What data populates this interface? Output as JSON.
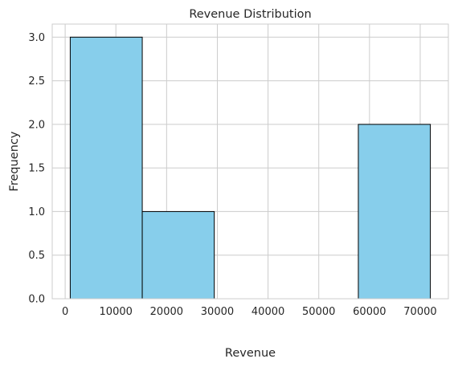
{
  "chart_data": {
    "type": "bar",
    "title": "Revenue Distribution",
    "xlabel": "Revenue",
    "ylabel": "Frequency",
    "bins": [
      {
        "start": 1000,
        "end": 15200,
        "count": 3
      },
      {
        "start": 15200,
        "end": 29400,
        "count": 1
      },
      {
        "start": 29400,
        "end": 43600,
        "count": 0
      },
      {
        "start": 43600,
        "end": 57800,
        "count": 0
      },
      {
        "start": 57800,
        "end": 72000,
        "count": 2
      }
    ],
    "xlim": [
      -2550,
      75550
    ],
    "ylim": [
      0,
      3.15
    ],
    "xticks": [
      0,
      10000,
      20000,
      30000,
      40000,
      50000,
      60000,
      70000
    ],
    "xtick_labels": [
      "0",
      "10000",
      "20000",
      "30000",
      "40000",
      "50000",
      "60000",
      "70000"
    ],
    "yticks": [
      0,
      0.5,
      1,
      1.5,
      2,
      2.5,
      3
    ],
    "ytick_labels": [
      "0.0",
      "0.5",
      "1.0",
      "1.5",
      "2.0",
      "2.5",
      "3.0"
    ],
    "grid": true,
    "colors": {
      "bar_fill": "#87ceeb",
      "bar_edge": "#000000",
      "grid": "#cccccc",
      "spine": "#cccccc"
    }
  }
}
